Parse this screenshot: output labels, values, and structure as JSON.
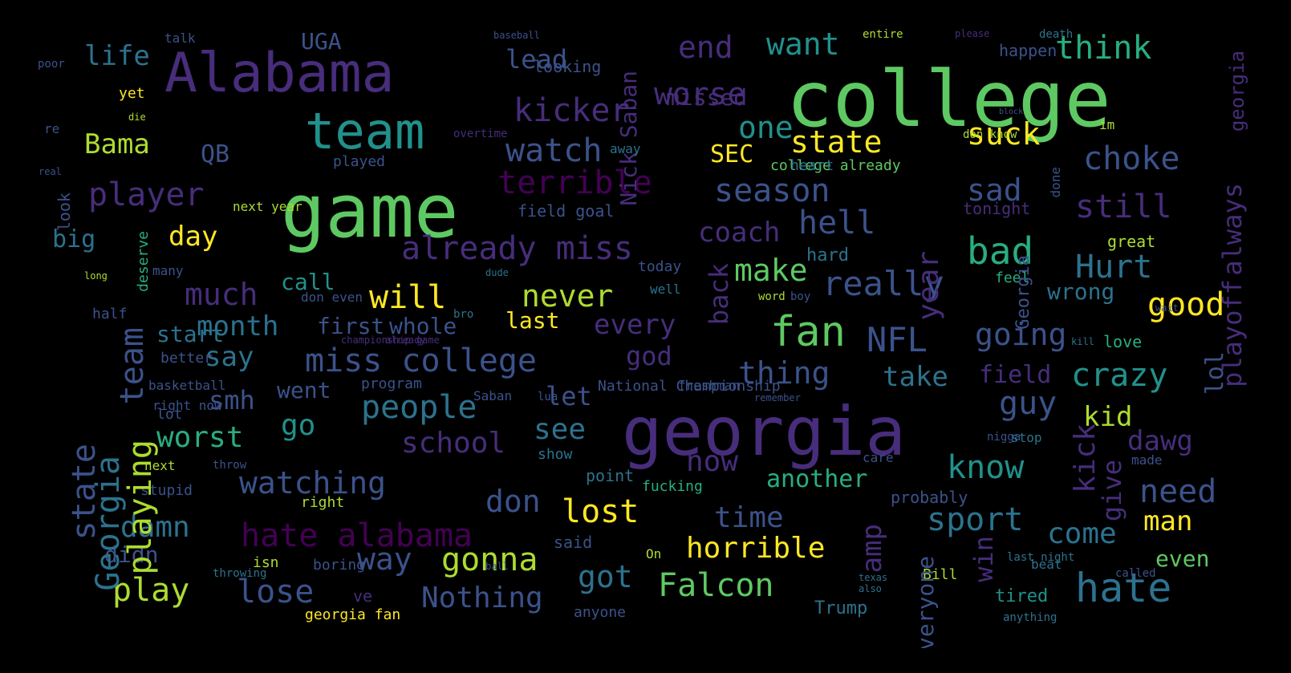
{
  "background": "#000000",
  "palette": [
    "#440154",
    "#472d7b",
    "#3b528b",
    "#2c728e",
    "#21918c",
    "#28ae80",
    "#5ec962",
    "#addc30",
    "#fde725"
  ],
  "words": [
    {
      "t": "game",
      "c": "#5ec962"
    },
    {
      "t": "college",
      "c": "#5ec962"
    },
    {
      "t": "georgia",
      "c": "#472d7b"
    },
    {
      "t": "Alabama",
      "c": "#472d7b"
    },
    {
      "t": "team",
      "c": "#21918c"
    },
    {
      "t": "hate",
      "c": "#2c728e"
    },
    {
      "t": "already miss",
      "c": "#472d7b"
    },
    {
      "t": "miss college",
      "c": "#3b528b"
    },
    {
      "t": "hate alabama",
      "c": "#440154"
    },
    {
      "t": "player",
      "c": "#472d7b"
    },
    {
      "t": "season",
      "c": "#3b528b"
    },
    {
      "t": "terrible",
      "c": "#440154"
    },
    {
      "t": "kicker",
      "c": "#472d7b"
    },
    {
      "t": "watch",
      "c": "#3b528b"
    },
    {
      "t": "fan",
      "c": "#5ec962"
    },
    {
      "t": "NFL",
      "c": "#3b528b"
    },
    {
      "t": "really",
      "c": "#3b528b"
    },
    {
      "t": "people",
      "c": "#2c728e"
    },
    {
      "t": "thing",
      "c": "#3b528b"
    },
    {
      "t": "bad",
      "c": "#28ae80"
    },
    {
      "t": "watching",
      "c": "#3b528b"
    },
    {
      "t": "never",
      "c": "#addc30"
    },
    {
      "t": "will",
      "c": "#fde725"
    },
    {
      "t": "lost",
      "c": "#fde725"
    },
    {
      "t": "play",
      "c": "#addc30"
    },
    {
      "t": "lose",
      "c": "#3b528b"
    },
    {
      "t": "gonna",
      "c": "#addc30"
    },
    {
      "t": "Nothing",
      "c": "#3b528b"
    },
    {
      "t": "Falcon",
      "c": "#5ec962"
    },
    {
      "t": "horrible",
      "c": "#fde725"
    },
    {
      "t": "sport",
      "c": "#2c728e"
    },
    {
      "t": "come",
      "c": "#2c728e"
    },
    {
      "t": "need",
      "c": "#3b528b"
    },
    {
      "t": "know",
      "c": "#21918c"
    },
    {
      "t": "crazy",
      "c": "#21918c"
    },
    {
      "t": "guy",
      "c": "#3b528b"
    },
    {
      "t": "good",
      "c": "#fde725"
    },
    {
      "t": "Hurt",
      "c": "#2c728e"
    },
    {
      "t": "still",
      "c": "#472d7b"
    },
    {
      "t": "choke",
      "c": "#3b528b"
    },
    {
      "t": "think",
      "c": "#28ae80"
    },
    {
      "t": "sad",
      "c": "#3b528b"
    },
    {
      "t": "suck",
      "c": "#fde725"
    },
    {
      "t": "state",
      "c": "#fde725"
    },
    {
      "t": "one",
      "c": "#21918c"
    },
    {
      "t": "want",
      "c": "#21918c"
    },
    {
      "t": "end",
      "c": "#472d7b"
    },
    {
      "t": "worse",
      "c": "#472d7b"
    },
    {
      "t": "missed",
      "c": "#472d7b"
    },
    {
      "t": "hell",
      "c": "#3b528b"
    },
    {
      "t": "coach",
      "c": "#472d7b"
    },
    {
      "t": "make",
      "c": "#5ec962"
    },
    {
      "t": "going",
      "c": "#3b528b"
    },
    {
      "t": "every",
      "c": "#472d7b"
    },
    {
      "t": "take",
      "c": "#2c728e"
    },
    {
      "t": "field",
      "c": "#472d7b"
    },
    {
      "t": "time",
      "c": "#3b528b"
    },
    {
      "t": "another",
      "c": "#28ae80"
    },
    {
      "t": "don",
      "c": "#3b528b"
    },
    {
      "t": "now",
      "c": "#472d7b"
    },
    {
      "t": "see",
      "c": "#2c728e"
    },
    {
      "t": "let",
      "c": "#3b528b"
    },
    {
      "t": "god",
      "c": "#472d7b"
    },
    {
      "t": "school",
      "c": "#472d7b"
    },
    {
      "t": "worst",
      "c": "#28ae80"
    },
    {
      "t": "go",
      "c": "#21918c"
    },
    {
      "t": "damn",
      "c": "#2c728e"
    },
    {
      "t": "way",
      "c": "#3b528b"
    },
    {
      "t": "got",
      "c": "#2c728e"
    },
    {
      "t": "much",
      "c": "#472d7b"
    },
    {
      "t": "month",
      "c": "#2c728e"
    },
    {
      "t": "say",
      "c": "#2c728e"
    },
    {
      "t": "smh",
      "c": "#3b528b"
    },
    {
      "t": "day",
      "c": "#fde725"
    },
    {
      "t": "big",
      "c": "#2c728e"
    },
    {
      "t": "Bama",
      "c": "#addc30"
    },
    {
      "t": "life",
      "c": "#2c728e"
    },
    {
      "t": "UGA",
      "c": "#3b528b"
    },
    {
      "t": "lead",
      "c": "#3b528b"
    },
    {
      "t": "Nick Saban",
      "c": "#472d7b"
    },
    {
      "t": "QB",
      "c": "#3b528b"
    },
    {
      "t": "SEC",
      "c": "#fde725"
    },
    {
      "t": "dawg",
      "c": "#472d7b"
    },
    {
      "t": "kid",
      "c": "#addc30"
    },
    {
      "t": "man",
      "c": "#fde725"
    },
    {
      "t": "even",
      "c": "#5ec962"
    },
    {
      "t": "wrong",
      "c": "#2c728e"
    },
    {
      "t": "whole",
      "c": "#3b528b"
    },
    {
      "t": "first",
      "c": "#3b528b"
    },
    {
      "t": "last",
      "c": "#fde725"
    },
    {
      "t": "call",
      "c": "#21918c"
    },
    {
      "t": "went",
      "c": "#3b528b"
    },
    {
      "t": "start",
      "c": "#2c728e"
    },
    {
      "t": "didn",
      "c": "#3b528b"
    },
    {
      "t": "ve",
      "c": "#472d7b"
    },
    {
      "t": "tired",
      "c": "#21918c"
    },
    {
      "t": "Trump",
      "c": "#2c728e"
    },
    {
      "t": "Bill",
      "c": "#addc30"
    },
    {
      "t": "boring",
      "c": "#3b528b"
    },
    {
      "t": "isn",
      "c": "#addc30"
    },
    {
      "t": "said",
      "c": "#3b528b"
    },
    {
      "t": "point",
      "c": "#2c728e"
    },
    {
      "t": "fucking",
      "c": "#28ae80"
    },
    {
      "t": "right",
      "c": "#addc30"
    },
    {
      "t": "stupid",
      "c": "#3b528b"
    },
    {
      "t": "lot",
      "c": "#3b528b"
    },
    {
      "t": "better",
      "c": "#3b528b"
    },
    {
      "t": "half",
      "c": "#3b528b"
    },
    {
      "t": "hard",
      "c": "#2c728e"
    },
    {
      "t": "today",
      "c": "#3b528b"
    },
    {
      "t": "feel",
      "c": "#28ae80"
    },
    {
      "t": "love",
      "c": "#28ae80"
    },
    {
      "t": "great",
      "c": "#addc30"
    },
    {
      "t": "tonight",
      "c": "#472d7b"
    },
    {
      "t": "field goal",
      "c": "#3b528b"
    },
    {
      "t": "played",
      "c": "#3b528b"
    },
    {
      "t": "college already",
      "c": "#5ec962"
    },
    {
      "t": "heart",
      "c": "#2c728e"
    },
    {
      "t": "im",
      "c": "#addc30"
    },
    {
      "t": "probably",
      "c": "#3b528b"
    },
    {
      "t": "anyone",
      "c": "#3b528b"
    },
    {
      "t": "georgia fan",
      "c": "#fde725"
    },
    {
      "t": "National Championship",
      "c": "#3b528b"
    },
    {
      "t": "freshman",
      "c": "#3b528b"
    },
    {
      "t": "program",
      "c": "#3b528b"
    },
    {
      "t": "show",
      "c": "#2c728e"
    },
    {
      "t": "next",
      "c": "#addc30"
    },
    {
      "t": "nigga",
      "c": "#3b528b"
    },
    {
      "t": "stop",
      "c": "#2c728e"
    },
    {
      "t": "care",
      "c": "#3b528b"
    },
    {
      "t": "made",
      "c": "#3b528b"
    },
    {
      "t": "looking",
      "c": "#3b528b"
    },
    {
      "t": "happen",
      "c": "#3b528b"
    },
    {
      "t": "yet",
      "c": "#fde725"
    },
    {
      "t": "re",
      "c": "#3b528b"
    },
    {
      "t": "poor",
      "c": "#3b528b"
    },
    {
      "t": "talk",
      "c": "#3b528b"
    },
    {
      "t": "away",
      "c": "#2c728e"
    },
    {
      "t": "don know",
      "c": "#addc30"
    },
    {
      "t": "next year",
      "c": "#addc30"
    },
    {
      "t": "don even",
      "c": "#3b528b"
    },
    {
      "t": "boy",
      "c": "#3b528b"
    },
    {
      "t": "word",
      "c": "#addc30"
    },
    {
      "t": "well",
      "c": "#2c728e"
    },
    {
      "t": "bro",
      "c": "#2c728e"
    },
    {
      "t": "many",
      "c": "#3b528b"
    },
    {
      "t": "dude",
      "c": "#2c728e"
    },
    {
      "t": "basketball",
      "c": "#3b528b"
    },
    {
      "t": "right now",
      "c": "#3b528b"
    },
    {
      "t": "Saban",
      "c": "#3b528b"
    },
    {
      "t": "lua",
      "c": "#3b528b"
    },
    {
      "t": "On",
      "c": "#addc30"
    },
    {
      "t": "ball",
      "c": "#3b528b"
    },
    {
      "t": "throwing",
      "c": "#2c728e"
    },
    {
      "t": "last night",
      "c": "#2c728e"
    },
    {
      "t": "beat",
      "c": "#2c728e"
    },
    {
      "t": "called",
      "c": "#3b528b"
    },
    {
      "t": "anything",
      "c": "#2c728e"
    },
    {
      "t": "baseball",
      "c": "#3b528b"
    },
    {
      "t": "entire",
      "c": "#addc30"
    },
    {
      "t": "please",
      "c": "#472d7b"
    },
    {
      "t": "death",
      "c": "#2c728e"
    },
    {
      "t": "block",
      "c": "#3b528b"
    },
    {
      "t": "overtime",
      "c": "#472d7b"
    },
    {
      "t": "die",
      "c": "#addc30"
    },
    {
      "t": "real",
      "c": "#3b528b"
    },
    {
      "t": "long",
      "c": "#addc30"
    },
    {
      "t": "remember",
      "c": "#3b528b"
    },
    {
      "t": "throw",
      "c": "#3b528b"
    },
    {
      "t": "already",
      "c": "#472d7b"
    },
    {
      "t": "championship game",
      "c": "#472d7b"
    },
    {
      "t": "texas",
      "c": "#2c728e"
    },
    {
      "t": "also",
      "c": "#2c728e"
    },
    {
      "t": "wait",
      "c": "#3b528b"
    },
    {
      "t": "kill",
      "c": "#2c728e"
    },
    {
      "t": "georgia",
      "c": "#472d7b"
    },
    {
      "t": "Georgia",
      "c": "#2c728e"
    },
    {
      "t": "Georgia",
      "c": "#3b528b"
    },
    {
      "t": "playoff",
      "c": "#472d7b"
    },
    {
      "t": "team",
      "c": "#3b528b"
    },
    {
      "t": "playing",
      "c": "#addc30"
    },
    {
      "t": "state",
      "c": "#3b528b"
    },
    {
      "t": "always",
      "c": "#472d7b"
    },
    {
      "t": "year",
      "c": "#472d7b"
    },
    {
      "t": "back",
      "c": "#472d7b"
    },
    {
      "t": "amp",
      "c": "#472d7b"
    },
    {
      "t": "win",
      "c": "#472d7b"
    },
    {
      "t": "kick",
      "c": "#472d7b"
    },
    {
      "t": "give",
      "c": "#472d7b"
    },
    {
      "t": "everyone",
      "c": "#3b528b"
    },
    {
      "t": "lol",
      "c": "#3b528b"
    },
    {
      "t": "look",
      "c": "#3b528b"
    },
    {
      "t": "deserve",
      "c": "#28ae80"
    },
    {
      "t": "done",
      "c": "#3b528b"
    }
  ]
}
